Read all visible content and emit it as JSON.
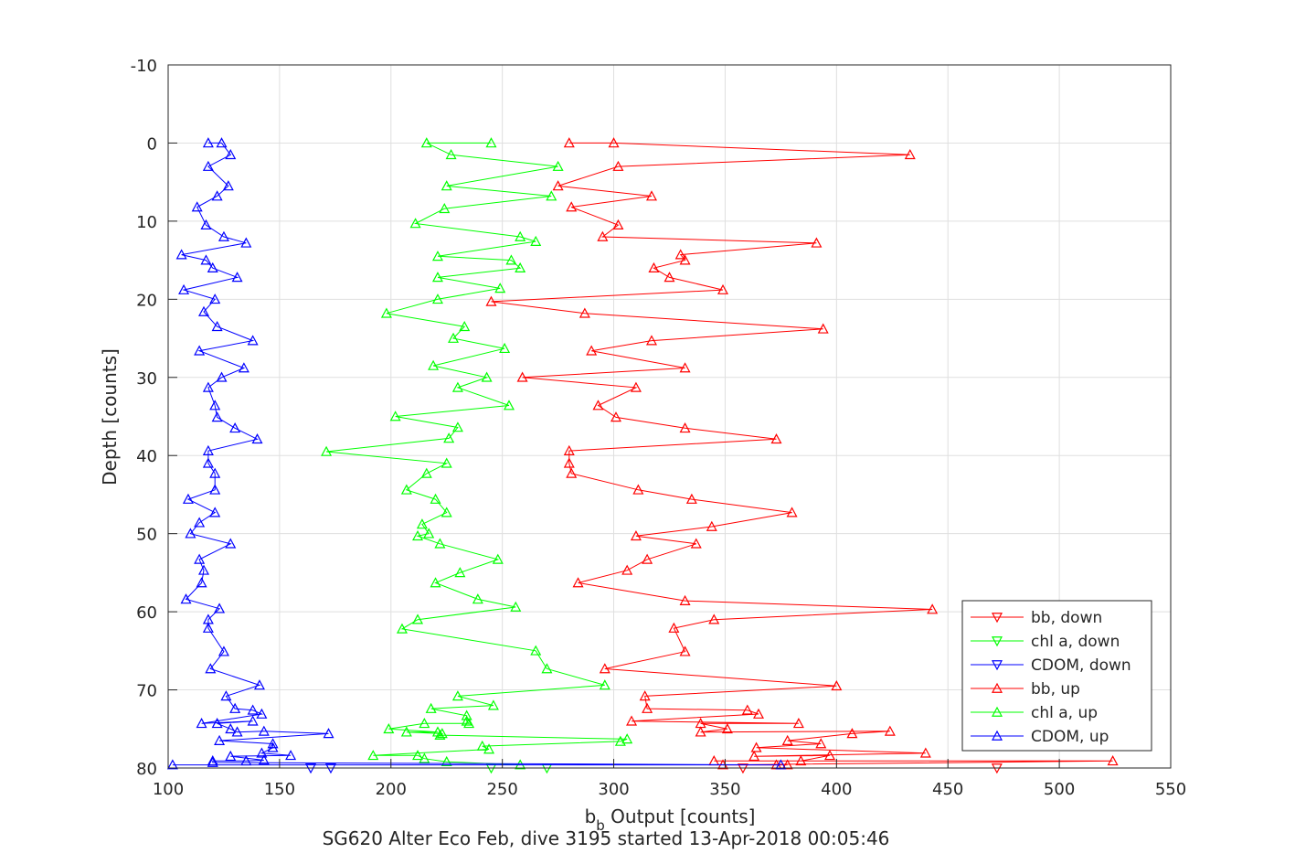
{
  "chart_data": {
    "type": "line",
    "title": "",
    "xlabel_main": "b",
    "xlabel_sub": "b",
    "xlabel_rest": " Output [counts]",
    "ylabel": "Depth [counts]",
    "footer": "SG620 Alter Eco Feb, dive 3195 started 13-Apr-2018 00:05:46",
    "xlim": [
      100,
      550
    ],
    "ylim": [
      -10,
      80
    ],
    "y_reversed": true,
    "grid": true,
    "legend_position": "bottom-right",
    "xticks": [
      "100",
      "150",
      "200",
      "250",
      "300",
      "350",
      "400",
      "450",
      "500",
      "550"
    ],
    "yticks": [
      "-10",
      "0",
      "10",
      "20",
      "30",
      "40",
      "50",
      "60",
      "70",
      "80"
    ],
    "series": [
      {
        "name": "bb, down",
        "color": "#ff0000",
        "marker": "triangle-down",
        "x": [
          472,
          358
        ],
        "y": [
          80,
          80
        ]
      },
      {
        "name": "chl a, down",
        "color": "#00ff00",
        "marker": "triangle-down",
        "x": [
          270,
          245
        ],
        "y": [
          80,
          80
        ]
      },
      {
        "name": "CDOM, down",
        "color": "#0000ff",
        "marker": "triangle-down",
        "x": [
          173,
          164
        ],
        "y": [
          80,
          80
        ]
      },
      {
        "name": "bb, up",
        "color": "#ff0000",
        "marker": "triangle-up",
        "x": [
          280,
          300,
          433,
          302,
          275,
          317,
          281,
          302,
          295,
          391,
          330,
          332,
          318,
          325,
          349,
          245,
          287,
          394,
          317,
          290,
          332,
          259,
          310,
          293,
          301,
          332,
          373,
          280,
          280,
          281,
          311,
          335,
          380,
          344,
          310,
          337,
          315,
          306,
          284,
          332,
          443,
          345,
          327,
          332,
          296,
          400,
          314,
          315,
          360,
          365,
          308,
          383,
          339,
          351,
          339,
          424,
          407,
          378,
          393,
          364,
          440,
          363,
          397,
          384,
          345,
          524,
          349,
          378,
          373
        ],
        "y": [
          0,
          0,
          1.5,
          3,
          5.5,
          6.8,
          8.2,
          10.5,
          12,
          12.8,
          14.3,
          15,
          16,
          17.2,
          18.8,
          20.3,
          21.8,
          23.8,
          25.3,
          26.6,
          28.8,
          30,
          31.3,
          33.6,
          35.1,
          36.5,
          37.9,
          39.4,
          41,
          42.3,
          44.4,
          45.6,
          47.3,
          49.1,
          50.3,
          51.3,
          53.3,
          54.7,
          56.3,
          58.6,
          59.7,
          61,
          62.1,
          65.1,
          67.3,
          69.5,
          70.8,
          72.4,
          72.6,
          73.1,
          74,
          74.3,
          74.3,
          75,
          75.4,
          75.3,
          75.6,
          76.5,
          76.9,
          77.4,
          78.1,
          78.5,
          78.4,
          79.1,
          79.1,
          79.1,
          79.6,
          79.6,
          79.6
        ]
      },
      {
        "name": "chl a, up",
        "color": "#00ff00",
        "marker": "triangle-up",
        "x": [
          245,
          216,
          227,
          275,
          225,
          272,
          224,
          211,
          258,
          265,
          221,
          254,
          258,
          221,
          249,
          221,
          198,
          233,
          228,
          251,
          219,
          243,
          230,
          253,
          202,
          230,
          226,
          171,
          225,
          216,
          207,
          220,
          225,
          214,
          217,
          212,
          222,
          248,
          231,
          220,
          239,
          256,
          212,
          205,
          265,
          270,
          296,
          230,
          246,
          218,
          234,
          234,
          235,
          215,
          199,
          221,
          207,
          223,
          222,
          306,
          303,
          241,
          244,
          192,
          212,
          215,
          225,
          258
        ],
        "y": [
          0,
          0,
          1.5,
          3,
          5.5,
          6.8,
          8.4,
          10.3,
          12,
          12.6,
          14.5,
          15,
          16,
          17.2,
          18.6,
          20,
          21.8,
          23.5,
          25,
          26.3,
          28.5,
          30,
          31.3,
          33.6,
          35,
          36.4,
          37.8,
          39.5,
          41,
          42.3,
          44.4,
          45.6,
          47.3,
          48.8,
          50,
          50.3,
          51.3,
          53.3,
          55,
          56.3,
          58.4,
          59.4,
          61,
          62.2,
          65,
          67.3,
          69.4,
          70.8,
          72,
          72.4,
          73.3,
          74,
          74.3,
          74.3,
          75,
          75.4,
          75.4,
          75.6,
          75.8,
          76.3,
          76.6,
          77.2,
          77.6,
          78.4,
          78.4,
          78.8,
          79.2,
          79.6
        ]
      },
      {
        "name": "CDOM, up",
        "color": "#0000ff",
        "marker": "triangle-up",
        "x": [
          118,
          124,
          128,
          118,
          127,
          122,
          113,
          117,
          125,
          135,
          106,
          117,
          120,
          131,
          107,
          121,
          116,
          122,
          138,
          114,
          134,
          124,
          118,
          121,
          122,
          130,
          140,
          118,
          118,
          121,
          121,
          109,
          121,
          114,
          110,
          128,
          114,
          116,
          115,
          108,
          123,
          118,
          118,
          125,
          119,
          141,
          126,
          130,
          138,
          142,
          115,
          138,
          122,
          128,
          131,
          143,
          172,
          123,
          147,
          147,
          142,
          155,
          128,
          143,
          135,
          120,
          120,
          375,
          102
        ],
        "y": [
          0,
          0,
          1.5,
          3,
          5.5,
          6.8,
          8.2,
          10.5,
          12,
          12.8,
          14.3,
          15,
          16,
          17.2,
          18.8,
          20,
          21.6,
          23.5,
          25.3,
          26.6,
          28.8,
          30,
          31.3,
          33.6,
          35.1,
          36.5,
          37.9,
          39.4,
          41,
          42.3,
          44.4,
          45.6,
          47.3,
          48.6,
          50,
          51.3,
          53.3,
          54.7,
          56.3,
          58.4,
          59.6,
          61,
          62.1,
          65.1,
          67.3,
          69.4,
          70.8,
          72.4,
          72.6,
          73.1,
          74.3,
          74,
          74.3,
          75,
          75.4,
          75.3,
          75.6,
          76.5,
          76.9,
          77.4,
          78.1,
          78.4,
          78.5,
          79,
          79.1,
          79.1,
          79.3,
          79.6,
          79.6
        ]
      }
    ]
  }
}
